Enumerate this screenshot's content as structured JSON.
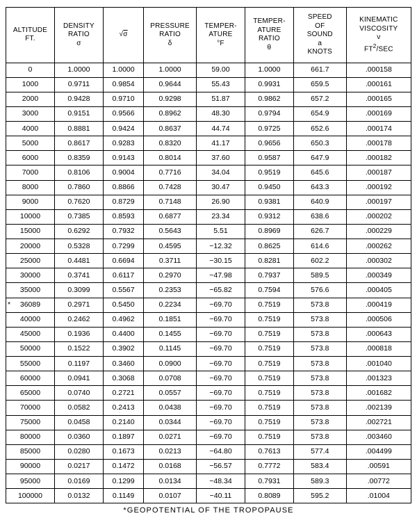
{
  "table": {
    "type": "table",
    "background_color": "#ffffff",
    "border_color": "#000000",
    "font_family": "Arial",
    "header_fontsize": 10,
    "cell_fontsize": 10.5,
    "columns": [
      {
        "key": "altitude",
        "label_html": "ALTITUDE<br>FT."
      },
      {
        "key": "density_ratio",
        "label_html": "DENSITY<br>RATIO<br>σ"
      },
      {
        "key": "sqrt_sigma",
        "label_html": "√<span style='text-decoration:overline'>σ</span>"
      },
      {
        "key": "pressure_ratio",
        "label_html": "PRESSURE<br>RATIO<br>δ"
      },
      {
        "key": "temperature",
        "label_html": "TEMPER-<br>ATURE<br>°F"
      },
      {
        "key": "temperature_ratio",
        "label_html": "TEMPER-<br>ATURE<br>RATIO<br>θ"
      },
      {
        "key": "speed_of_sound",
        "label_html": "SPEED<br>OF<br>SOUND<br>a<br>KNOTS"
      },
      {
        "key": "kinematic_viscosity",
        "label_html": "KINEMATIC<br>VISCOSITY<br>ν<br>FT<sup>2</sup>/SEC"
      }
    ],
    "rows": [
      {
        "altitude": "0",
        "density_ratio": "1.0000",
        "sqrt_sigma": "1.0000",
        "pressure_ratio": "1.0000",
        "temperature": "59.00",
        "temperature_ratio": "1.0000",
        "speed_of_sound": "661.7",
        "kinematic_viscosity": ".000158",
        "star": false
      },
      {
        "altitude": "1000",
        "density_ratio": "0.9711",
        "sqrt_sigma": "0.9854",
        "pressure_ratio": "0.9644",
        "temperature": "55.43",
        "temperature_ratio": "0.9931",
        "speed_of_sound": "659.5",
        "kinematic_viscosity": ".000161",
        "star": false
      },
      {
        "altitude": "2000",
        "density_ratio": "0.9428",
        "sqrt_sigma": "0.9710",
        "pressure_ratio": "0.9298",
        "temperature": "51.87",
        "temperature_ratio": "0.9862",
        "speed_of_sound": "657.2",
        "kinematic_viscosity": ".000165",
        "star": false
      },
      {
        "altitude": "3000",
        "density_ratio": "0.9151",
        "sqrt_sigma": "0.9566",
        "pressure_ratio": "0.8962",
        "temperature": "48.30",
        "temperature_ratio": "0.9794",
        "speed_of_sound": "654.9",
        "kinematic_viscosity": ".000169",
        "star": false
      },
      {
        "altitude": "4000",
        "density_ratio": "0.8881",
        "sqrt_sigma": "0.9424",
        "pressure_ratio": "0.8637",
        "temperature": "44.74",
        "temperature_ratio": "0.9725",
        "speed_of_sound": "652.6",
        "kinematic_viscosity": ".000174",
        "star": false
      },
      {
        "altitude": "5000",
        "density_ratio": "0.8617",
        "sqrt_sigma": "0.9283",
        "pressure_ratio": "0.8320",
        "temperature": "41.17",
        "temperature_ratio": "0.9656",
        "speed_of_sound": "650.3",
        "kinematic_viscosity": ".000178",
        "star": false
      },
      {
        "altitude": "6000",
        "density_ratio": "0.8359",
        "sqrt_sigma": "0.9143",
        "pressure_ratio": "0.8014",
        "temperature": "37.60",
        "temperature_ratio": "0.9587",
        "speed_of_sound": "647.9",
        "kinematic_viscosity": ".000182",
        "star": false
      },
      {
        "altitude": "7000",
        "density_ratio": "0.8106",
        "sqrt_sigma": "0.9004",
        "pressure_ratio": "0.7716",
        "temperature": "34.04",
        "temperature_ratio": "0.9519",
        "speed_of_sound": "645.6",
        "kinematic_viscosity": ".000187",
        "star": false
      },
      {
        "altitude": "8000",
        "density_ratio": "0.7860",
        "sqrt_sigma": "0.8866",
        "pressure_ratio": "0.7428",
        "temperature": "30.47",
        "temperature_ratio": "0.9450",
        "speed_of_sound": "643.3",
        "kinematic_viscosity": ".000192",
        "star": false
      },
      {
        "altitude": "9000",
        "density_ratio": "0.7620",
        "sqrt_sigma": "0.8729",
        "pressure_ratio": "0.7148",
        "temperature": "26.90",
        "temperature_ratio": "0.9381",
        "speed_of_sound": "640.9",
        "kinematic_viscosity": ".000197",
        "star": false
      },
      {
        "altitude": "10000",
        "density_ratio": "0.7385",
        "sqrt_sigma": "0.8593",
        "pressure_ratio": "0.6877",
        "temperature": "23.34",
        "temperature_ratio": "0.9312",
        "speed_of_sound": "638.6",
        "kinematic_viscosity": ".000202",
        "star": false
      },
      {
        "altitude": "15000",
        "density_ratio": "0.6292",
        "sqrt_sigma": "0.7932",
        "pressure_ratio": "0.5643",
        "temperature": "5.51",
        "temperature_ratio": "0.8969",
        "speed_of_sound": "626.7",
        "kinematic_viscosity": ".000229",
        "star": false
      },
      {
        "altitude": "20000",
        "density_ratio": "0.5328",
        "sqrt_sigma": "0.7299",
        "pressure_ratio": "0.4595",
        "temperature": "−12.32",
        "temperature_ratio": "0.8625",
        "speed_of_sound": "614.6",
        "kinematic_viscosity": ".000262",
        "star": false
      },
      {
        "altitude": "25000",
        "density_ratio": "0.4481",
        "sqrt_sigma": "0.6694",
        "pressure_ratio": "0.3711",
        "temperature": "−30.15",
        "temperature_ratio": "0.8281",
        "speed_of_sound": "602.2",
        "kinematic_viscosity": ".000302",
        "star": false
      },
      {
        "altitude": "30000",
        "density_ratio": "0.3741",
        "sqrt_sigma": "0.6117",
        "pressure_ratio": "0.2970",
        "temperature": "−47.98",
        "temperature_ratio": "0.7937",
        "speed_of_sound": "589.5",
        "kinematic_viscosity": ".000349",
        "star": false
      },
      {
        "altitude": "35000",
        "density_ratio": "0.3099",
        "sqrt_sigma": "0.5567",
        "pressure_ratio": "0.2353",
        "temperature": "−65.82",
        "temperature_ratio": "0.7594",
        "speed_of_sound": "576.6",
        "kinematic_viscosity": ".000405",
        "star": false
      },
      {
        "altitude": "36089",
        "density_ratio": "0.2971",
        "sqrt_sigma": "0.5450",
        "pressure_ratio": "0.2234",
        "temperature": "−69.70",
        "temperature_ratio": "0.7519",
        "speed_of_sound": "573.8",
        "kinematic_viscosity": ".000419",
        "star": true
      },
      {
        "altitude": "40000",
        "density_ratio": "0.2462",
        "sqrt_sigma": "0.4962",
        "pressure_ratio": "0.1851",
        "temperature": "−69.70",
        "temperature_ratio": "0.7519",
        "speed_of_sound": "573.8",
        "kinematic_viscosity": ".000506",
        "star": false
      },
      {
        "altitude": "45000",
        "density_ratio": "0.1936",
        "sqrt_sigma": "0.4400",
        "pressure_ratio": "0.1455",
        "temperature": "−69.70",
        "temperature_ratio": "0.7519",
        "speed_of_sound": "573.8",
        "kinematic_viscosity": ".000643",
        "star": false
      },
      {
        "altitude": "50000",
        "density_ratio": "0.1522",
        "sqrt_sigma": "0.3902",
        "pressure_ratio": "0.1145",
        "temperature": "−69.70",
        "temperature_ratio": "0.7519",
        "speed_of_sound": "573.8",
        "kinematic_viscosity": ".000818",
        "star": false
      },
      {
        "altitude": "55000",
        "density_ratio": "0.1197",
        "sqrt_sigma": "0.3460",
        "pressure_ratio": "0.0900",
        "temperature": "−69.70",
        "temperature_ratio": "0.7519",
        "speed_of_sound": "573.8",
        "kinematic_viscosity": ".001040",
        "star": false
      },
      {
        "altitude": "60000",
        "density_ratio": "0.0941",
        "sqrt_sigma": "0.3068",
        "pressure_ratio": "0.0708",
        "temperature": "−69.70",
        "temperature_ratio": "0.7519",
        "speed_of_sound": "573.8",
        "kinematic_viscosity": ".001323",
        "star": false
      },
      {
        "altitude": "65000",
        "density_ratio": "0.0740",
        "sqrt_sigma": "0.2721",
        "pressure_ratio": "0.0557",
        "temperature": "−69.70",
        "temperature_ratio": "0.7519",
        "speed_of_sound": "573.8",
        "kinematic_viscosity": ".001682",
        "star": false
      },
      {
        "altitude": "70000",
        "density_ratio": "0.0582",
        "sqrt_sigma": "0.2413",
        "pressure_ratio": "0.0438",
        "temperature": "−69.70",
        "temperature_ratio": "0.7519",
        "speed_of_sound": "573.8",
        "kinematic_viscosity": ".002139",
        "star": false
      },
      {
        "altitude": "75000",
        "density_ratio": "0.0458",
        "sqrt_sigma": "0.2140",
        "pressure_ratio": "0.0344",
        "temperature": "−69.70",
        "temperature_ratio": "0.7519",
        "speed_of_sound": "573.8",
        "kinematic_viscosity": ".002721",
        "star": false
      },
      {
        "altitude": "80000",
        "density_ratio": "0.0360",
        "sqrt_sigma": "0.1897",
        "pressure_ratio": "0.0271",
        "temperature": "−69.70",
        "temperature_ratio": "0.7519",
        "speed_of_sound": "573.8",
        "kinematic_viscosity": ".003460",
        "star": false
      },
      {
        "altitude": "85000",
        "density_ratio": "0.0280",
        "sqrt_sigma": "0.1673",
        "pressure_ratio": "0.0213",
        "temperature": "−64.80",
        "temperature_ratio": "0.7613",
        "speed_of_sound": "577.4",
        "kinematic_viscosity": ".004499",
        "star": false
      },
      {
        "altitude": "90000",
        "density_ratio": "0.0217",
        "sqrt_sigma": "0.1472",
        "pressure_ratio": "0.0168",
        "temperature": "−56.57",
        "temperature_ratio": "0.7772",
        "speed_of_sound": "583.4",
        "kinematic_viscosity": ".00591",
        "star": false
      },
      {
        "altitude": "95000",
        "density_ratio": "0.0169",
        "sqrt_sigma": "0.1299",
        "pressure_ratio": "0.0134",
        "temperature": "−48.34",
        "temperature_ratio": "0.7931",
        "speed_of_sound": "589.3",
        "kinematic_viscosity": ".00772",
        "star": false
      },
      {
        "altitude": "100000",
        "density_ratio": "0.0132",
        "sqrt_sigma": "0.1149",
        "pressure_ratio": "0.0107",
        "temperature": "−40.11",
        "temperature_ratio": "0.8089",
        "speed_of_sound": "595.2",
        "kinematic_viscosity": ".01004",
        "star": false
      }
    ],
    "footnote": "*GEOPOTENTIAL OF THE TROPOPAUSE"
  }
}
